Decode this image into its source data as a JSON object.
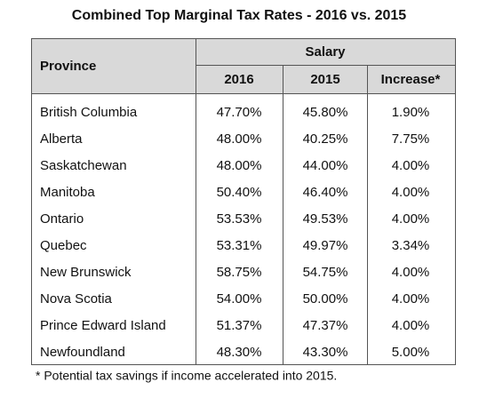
{
  "title": "Combined Top Marginal Tax Rates - 2016 vs. 2015",
  "table": {
    "header": {
      "province": "Province",
      "group": "Salary",
      "columns": [
        "2016",
        "2015",
        "Increase*"
      ]
    },
    "rows": [
      [
        "British Columbia",
        "47.70%",
        "45.80%",
        "1.90%"
      ],
      [
        "Alberta",
        "48.00%",
        "40.25%",
        "7.75%"
      ],
      [
        "Saskatchewan",
        "48.00%",
        "44.00%",
        "4.00%"
      ],
      [
        "Manitoba",
        "50.40%",
        "46.40%",
        "4.00%"
      ],
      [
        "Ontario",
        "53.53%",
        "49.53%",
        "4.00%"
      ],
      [
        "Quebec",
        "53.31%",
        "49.97%",
        "3.34%"
      ],
      [
        "New Brunswick",
        "58.75%",
        "54.75%",
        "4.00%"
      ],
      [
        "Nova Scotia",
        "54.00%",
        "50.00%",
        "4.00%"
      ],
      [
        "Prince Edward Island",
        "51.37%",
        "47.37%",
        "4.00%"
      ],
      [
        "Newfoundland",
        "48.30%",
        "43.30%",
        "5.00%"
      ]
    ]
  },
  "footnote": "* Potential tax savings if income accelerated into 2015."
}
